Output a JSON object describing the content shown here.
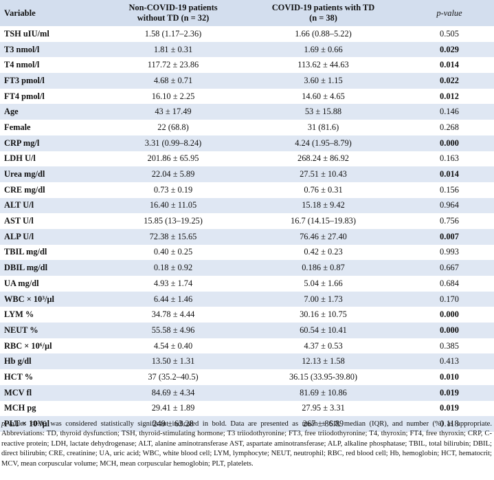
{
  "headers": {
    "variable": "Variable",
    "non_covid_line1": "Non-COVID-19 patients",
    "non_covid_line2": "without TD (n = 32)",
    "covid_line1": "COVID-19 patients with TD",
    "covid_line2": "(n = 38)",
    "pvalue": "p-value"
  },
  "rows": [
    {
      "label": "TSH uIU/ml",
      "non_covid": "1.58 (1.17–2.36)",
      "covid": "1.66 (0.88–5.22)",
      "p": "0.505",
      "significant": false
    },
    {
      "label": "T3 nmol/l",
      "non_covid": "1.81 ± 0.31",
      "covid": "1.69 ± 0.66",
      "p": "0.029",
      "significant": true
    },
    {
      "label": "T4 nmol/l",
      "non_covid": "117.72 ± 23.86",
      "covid": "113.62 ± 44.63",
      "p": "0.014",
      "significant": true
    },
    {
      "label": "FT3 pmol/l",
      "non_covid": "4.68 ± 0.71",
      "covid": "3.60 ± 1.15",
      "p": "0.022",
      "significant": true
    },
    {
      "label": "FT4 pmol/l",
      "non_covid": "16.10 ± 2.25",
      "covid": "14.60 ± 4.65",
      "p": "0.012",
      "significant": true
    },
    {
      "label": "Age",
      "non_covid": "43 ± 17.49",
      "covid": "53 ± 15.88",
      "p": "0.146",
      "significant": false
    },
    {
      "label": "Female",
      "non_covid": "22 (68.8)",
      "covid": "31 (81.6)",
      "p": "0.268",
      "significant": false
    },
    {
      "label": "CRP mg/l",
      "non_covid": "3.31 (0.99–8.24)",
      "covid": "4.24 (1.95–8.79)",
      "p": "0.000",
      "significant": true
    },
    {
      "label": "LDH U/l",
      "non_covid": "201.86 ± 65.95",
      "covid": "268.24 ± 86.92",
      "p": "0.163",
      "significant": false
    },
    {
      "label": "Urea mg/dl",
      "non_covid": "22.04 ± 5.89",
      "covid": "27.51 ± 10.43",
      "p": "0.014",
      "significant": true
    },
    {
      "label": "CRE mg/dl",
      "non_covid": "0.73 ± 0.19",
      "covid": "0.76 ± 0.31",
      "p": "0.156",
      "significant": false
    },
    {
      "label": "ALT U/l",
      "non_covid": "16.40 ± 11.05",
      "covid": "15.18 ± 9.42",
      "p": "0.964",
      "significant": false
    },
    {
      "label": "AST U/l",
      "non_covid": "15.85 (13–19.25)",
      "covid": "16.7 (14.15–19.83)",
      "p": "0.756",
      "significant": false
    },
    {
      "label": "ALP U/l",
      "non_covid": "72.38 ± 15.65",
      "covid": "76.46 ± 27.40",
      "p": "0.007",
      "significant": true
    },
    {
      "label": "TBIL mg/dl",
      "non_covid": "0.40 ± 0.25",
      "covid": "0.42 ± 0.23",
      "p": "0.993",
      "significant": false
    },
    {
      "label": "DBIL mg/dl",
      "non_covid": "0.18 ± 0.92",
      "covid": "0.186 ± 0.87",
      "p": "0.667",
      "significant": false
    },
    {
      "label": "UA mg/dl",
      "non_covid": "4.93 ± 1.74",
      "covid": "5.04 ± 1.66",
      "p": "0.684",
      "significant": false
    },
    {
      "label": "WBC × 10³/µl",
      "non_covid": "6.44 ± 1.46",
      "covid": "7.00 ± 1.73",
      "p": "0.170",
      "significant": false
    },
    {
      "label": "LYM %",
      "non_covid": "34.78 ± 4.44",
      "covid": "30.16 ± 10.75",
      "p": "0.000",
      "significant": true
    },
    {
      "label": "NEUT %",
      "non_covid": "55.58 ± 4.96",
      "covid": "60.54 ± 10.41",
      "p": "0.000",
      "significant": true
    },
    {
      "label": "RBC × 10⁶/µl",
      "non_covid": "4.54 ± 0.40",
      "covid": "4.37 ± 0.53",
      "p": "0.385",
      "significant": false
    },
    {
      "label": "Hb g/dl",
      "non_covid": "13.50 ± 1.31",
      "covid": "12.13 ± 1.58",
      "p": "0.413",
      "significant": false
    },
    {
      "label": "HCT %",
      "non_covid": "37 (35.2–40.5)",
      "covid": "36.15 (33.95-39.80)",
      "p": "0.010",
      "significant": true
    },
    {
      "label": "MCV fl",
      "non_covid": "84.69 ± 4.34",
      "covid": "81.69 ± 10.86",
      "p": "0.019",
      "significant": true
    },
    {
      "label": "MCH pg",
      "non_covid": "29.41 ± 1.89",
      "covid": "27.95 ± 3.31",
      "p": "0.019",
      "significant": true
    },
    {
      "label": "PLT × 10³/µl",
      "non_covid": "249 ± 63.28",
      "covid": "267 ± 86.89",
      "p": "0.118",
      "significant": false
    }
  ],
  "footnote": {
    "p_italic": "p",
    "text": "-values <0.05 was considered statistically significant indicated in bold. Data are presented as mean ± SD, median (IQR), and number (%) as appropriate. Abbreviations: TD, thyroid dysfunction; TSH, thyroid-stimulating hormone; T3 triiodothyronine; FT3, free triiodothyronine; T4, thyroxin; FT4, free thyroxin; CRP, C-reactive protein; LDH, lactate dehydrogenase; ALT, alanine aminotransferase AST, aspartate aminotransferase; ALP, alkaline phosphatase; TBIL, total bilirubin; DBIL; direct bilirubin; CRE, creatinine; UA, uric acid; WBC, white blood cell; LYM, lymphocyte; NEUT, neutrophil; RBC, red blood cell; Hb, hemoglobin; HCT, hematocrit; MCV, mean corpuscular volume; MCH, mean corpuscular hemoglobin; PLT, platelets."
  }
}
